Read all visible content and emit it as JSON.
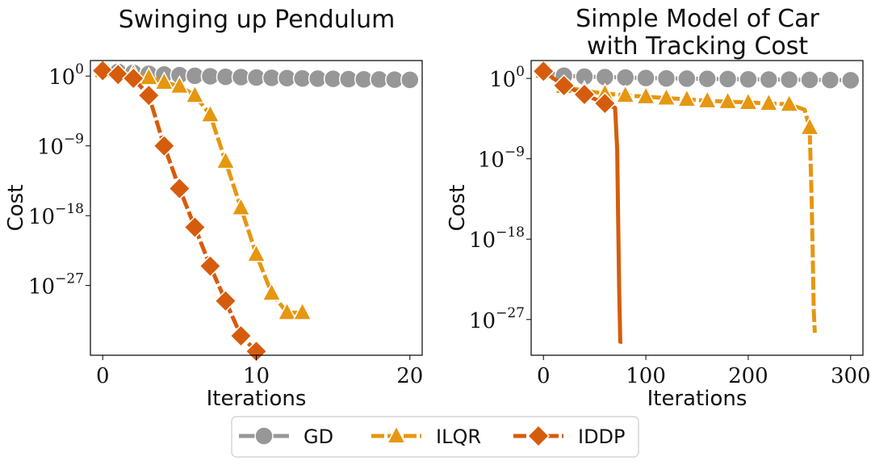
{
  "chart_data": [
    {
      "type": "line",
      "title": "Swinging up Pendulum",
      "xlabel": "Iterations",
      "ylabel": "Cost",
      "yscale": "log",
      "xlim": [
        -0.8,
        20.8
      ],
      "ylim_log10": [
        -36,
        2
      ],
      "xticks": [
        0,
        10,
        20
      ],
      "yticks_exp": [
        0,
        -9,
        -18,
        -27
      ],
      "grid": false,
      "series": [
        {
          "name": "GD",
          "color": "#979797",
          "marker": "circle",
          "dashed": false,
          "x": [
            0,
            1,
            2,
            3,
            4,
            5,
            6,
            7,
            8,
            9,
            10,
            11,
            12,
            13,
            14,
            15,
            16,
            17,
            18,
            19,
            20
          ],
          "log10y": [
            0.7,
            0.55,
            0.42,
            0.3,
            0.2,
            0.12,
            0.04,
            -0.03,
            -0.09,
            -0.14,
            -0.19,
            -0.23,
            -0.27,
            -0.3,
            -0.33,
            -0.36,
            -0.39,
            -0.42,
            -0.44,
            -0.46,
            -0.48
          ]
        },
        {
          "name": "ILQR",
          "color": "#E69710",
          "marker": "triangle",
          "dashed": true,
          "x": [
            0,
            1,
            2,
            3,
            4,
            5,
            6,
            7,
            8,
            9,
            10,
            11,
            12,
            13
          ],
          "log10y": [
            0.7,
            0.5,
            0.3,
            -0.2,
            -0.8,
            -1.3,
            -2.5,
            -5.0,
            -11.0,
            -17.0,
            -23.0,
            -28.0,
            -30.5,
            -30.5
          ]
        },
        {
          "name": "IDDP",
          "color": "#D65C0D",
          "marker": "diamond",
          "dashed": true,
          "x": [
            0,
            1,
            2,
            3,
            4,
            5,
            6,
            7,
            8,
            9,
            10
          ],
          "log10y": [
            0.7,
            0.2,
            -0.3,
            -2.5,
            -9.0,
            -14.5,
            -19.5,
            -24.5,
            -29.0,
            -33.5,
            -35.5
          ]
        }
      ]
    },
    {
      "type": "line",
      "title": "Simple Model of Car with Tracking Cost",
      "title_lines": [
        "Simple Model of Car",
        "with Tracking Cost"
      ],
      "xlabel": "Iterations",
      "ylabel": "Cost",
      "yscale": "log",
      "xlim": [
        -12,
        312
      ],
      "ylim_log10": [
        -31,
        2
      ],
      "xticks": [
        0,
        100,
        200,
        300
      ],
      "yticks_exp": [
        0,
        -9,
        -18,
        -27
      ],
      "grid": false,
      "series": [
        {
          "name": "GD",
          "color": "#979797",
          "marker": "circle",
          "dashed": false,
          "marker_every": 20,
          "x": [
            0,
            20,
            40,
            60,
            80,
            100,
            120,
            140,
            160,
            180,
            200,
            220,
            240,
            260,
            280,
            300
          ],
          "log10y": [
            0.8,
            0.3,
            0.2,
            0.15,
            0.1,
            0.05,
            0.0,
            -0.02,
            -0.05,
            -0.07,
            -0.1,
            -0.12,
            -0.14,
            -0.16,
            -0.18,
            -0.2
          ]
        },
        {
          "name": "ILQR",
          "color": "#E69710",
          "marker": "triangle",
          "dashed": true,
          "marker_every": 20,
          "x": [
            0,
            20,
            40,
            60,
            80,
            100,
            120,
            140,
            160,
            180,
            200,
            220,
            240,
            255,
            260,
            262,
            264,
            265
          ],
          "log10y": [
            0.8,
            -0.9,
            -1.4,
            -1.7,
            -1.9,
            -2.05,
            -2.2,
            -2.35,
            -2.5,
            -2.6,
            -2.7,
            -2.8,
            -2.9,
            -3.5,
            -5.5,
            -14.0,
            -26.0,
            -28.5
          ]
        },
        {
          "name": "IDDP",
          "color": "#D65C0D",
          "marker": "diamond",
          "dashed": false,
          "marker_every": 20,
          "x": [
            0,
            20,
            40,
            60,
            70,
            72,
            73,
            74,
            75,
            77
          ],
          "log10y": [
            0.8,
            -0.8,
            -1.8,
            -2.8,
            -3.3,
            -8.0,
            -16.0,
            -24.0,
            -29.5,
            -29.5
          ]
        }
      ]
    }
  ],
  "legend": {
    "placement": "bottom-center",
    "items": [
      {
        "label": "GD",
        "color": "#979797",
        "marker": "circle"
      },
      {
        "label": "ILQR",
        "color": "#E69710",
        "marker": "triangle"
      },
      {
        "label": "IDDP",
        "color": "#D65C0D",
        "marker": "diamond"
      }
    ]
  }
}
